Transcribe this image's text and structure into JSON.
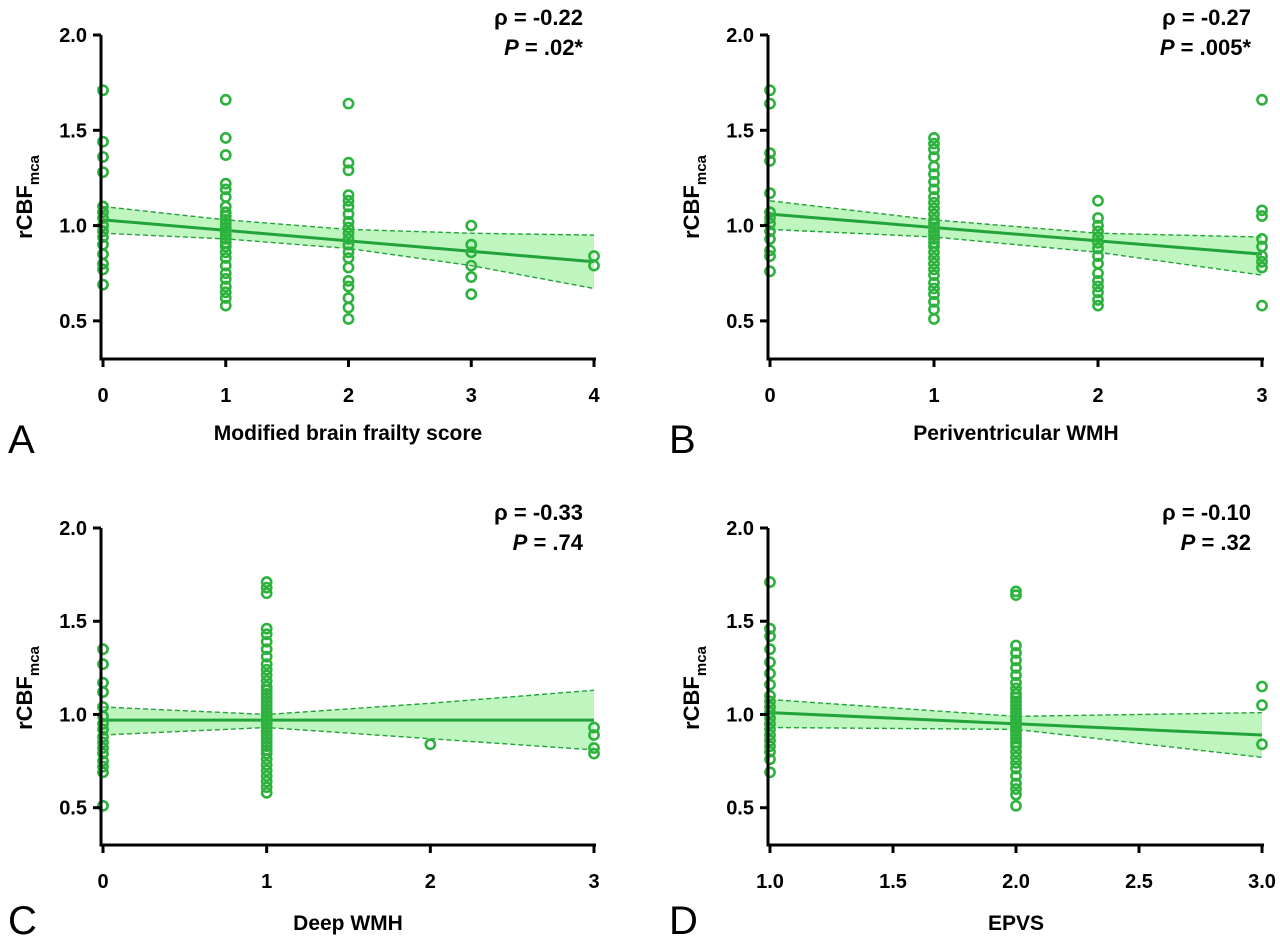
{
  "chart_data": [
    {
      "type": "scatter",
      "panel_label": "A",
      "xlabel": "Modified brain frailty score",
      "ylabel": "rCBF",
      "ylabel_subscript": "mca",
      "ylim": [
        0.3,
        2.0
      ],
      "yticks": [
        0.5,
        1.0,
        1.5,
        2.0
      ],
      "ytick_labels": [
        "0.5",
        "1.0",
        "1.5",
        "2.0"
      ],
      "xlim": [
        0,
        4
      ],
      "xticks": [
        0,
        1,
        2,
        3,
        4
      ],
      "xtick_labels": [
        "0",
        "1",
        "2",
        "3",
        "4"
      ],
      "rho_text": "ρ = -0.22",
      "p_label": "P",
      "p_text": " = .02*",
      "points": [
        {
          "x": 0,
          "y": [
            1.71,
            1.44,
            1.36,
            1.28,
            1.1,
            1.07,
            1.04,
            1.0,
            0.97,
            0.94,
            0.9,
            0.85,
            0.8,
            0.77,
            0.69
          ]
        },
        {
          "x": 1,
          "y": [
            1.66,
            1.46,
            1.37,
            1.22,
            1.19,
            1.15,
            1.1,
            1.07,
            1.05,
            1.03,
            1.01,
            0.99,
            0.97,
            0.95,
            0.93,
            0.91,
            0.89,
            0.86,
            0.83,
            0.79,
            0.75,
            0.72,
            0.68,
            0.65,
            0.62,
            0.58
          ]
        },
        {
          "x": 2,
          "y": [
            1.64,
            1.33,
            1.29,
            1.16,
            1.13,
            1.1,
            1.06,
            1.02,
            0.99,
            0.96,
            0.93,
            0.9,
            0.86,
            0.83,
            0.78,
            0.71,
            0.68,
            0.62,
            0.57,
            0.51
          ]
        },
        {
          "x": 3,
          "y": [
            1.0,
            0.9,
            0.86,
            0.79,
            0.73,
            0.64
          ]
        },
        {
          "x": 4,
          "y": [
            0.84,
            0.79
          ]
        }
      ],
      "fit": {
        "x": [
          0,
          4
        ],
        "y": [
          1.03,
          0.81
        ]
      },
      "ci_upper": {
        "x": [
          0,
          1,
          2,
          3,
          4
        ],
        "y": [
          1.1,
          1.03,
          0.98,
          0.96,
          0.95
        ]
      },
      "ci_lower": {
        "x": [
          0,
          1,
          2,
          3,
          4
        ],
        "y": [
          0.96,
          0.93,
          0.88,
          0.79,
          0.67
        ]
      }
    },
    {
      "type": "scatter",
      "panel_label": "B",
      "xlabel": "Periventricular WMH",
      "ylabel": "rCBF",
      "ylabel_subscript": "mca",
      "ylim": [
        0.3,
        2.0
      ],
      "yticks": [
        0.5,
        1.0,
        1.5,
        2.0
      ],
      "ytick_labels": [
        "0.5",
        "1.0",
        "1.5",
        "2.0"
      ],
      "xlim": [
        0,
        3
      ],
      "xticks": [
        0,
        1,
        2,
        3
      ],
      "xtick_labels": [
        "0",
        "1",
        "2",
        "3"
      ],
      "rho_text": "ρ = -0.27",
      "p_label": "P",
      "p_text": " = .005*",
      "points": [
        {
          "x": 0,
          "y": [
            1.71,
            1.64,
            1.38,
            1.34,
            1.17,
            1.07,
            1.04,
            1.01,
            0.97,
            0.93,
            0.87,
            0.84,
            0.76
          ]
        },
        {
          "x": 1,
          "y": [
            1.46,
            1.43,
            1.4,
            1.36,
            1.31,
            1.27,
            1.23,
            1.19,
            1.15,
            1.12,
            1.09,
            1.06,
            1.03,
            1.01,
            0.99,
            0.97,
            0.95,
            0.93,
            0.91,
            0.89,
            0.86,
            0.83,
            0.8,
            0.77,
            0.74,
            0.7,
            0.67,
            0.64,
            0.6,
            0.56,
            0.51
          ]
        },
        {
          "x": 2,
          "y": [
            1.13,
            1.04,
            1.0,
            0.97,
            0.94,
            0.91,
            0.88,
            0.84,
            0.8,
            0.75,
            0.71,
            0.68,
            0.65,
            0.61,
            0.58
          ]
        },
        {
          "x": 3,
          "y": [
            1.66,
            1.08,
            1.05,
            0.93,
            0.89,
            0.84,
            0.81,
            0.78,
            0.58
          ]
        }
      ],
      "fit": {
        "x": [
          0,
          3
        ],
        "y": [
          1.06,
          0.85
        ]
      },
      "ci_upper": {
        "x": [
          0,
          1,
          2,
          3
        ],
        "y": [
          1.13,
          1.03,
          0.96,
          0.94
        ]
      },
      "ci_lower": {
        "x": [
          0,
          1,
          2,
          3
        ],
        "y": [
          0.98,
          0.94,
          0.86,
          0.74
        ]
      }
    },
    {
      "type": "scatter",
      "panel_label": "C",
      "xlabel": "Deep WMH",
      "ylabel": "rCBF",
      "ylabel_subscript": "mca",
      "ylim": [
        0.3,
        2.0
      ],
      "yticks": [
        0.5,
        1.0,
        1.5,
        2.0
      ],
      "ytick_labels": [
        "0.5",
        "1.0",
        "1.5",
        "2.0"
      ],
      "xlim": [
        0,
        3
      ],
      "xticks": [
        0,
        1,
        2,
        3
      ],
      "xtick_labels": [
        "0",
        "1",
        "2",
        "3"
      ],
      "rho_text": "ρ = -0.33",
      "p_label": "P",
      "p_text": " = .74",
      "points": [
        {
          "x": 0,
          "y": [
            1.35,
            1.27,
            1.17,
            1.12,
            1.04,
            0.99,
            0.95,
            0.92,
            0.88,
            0.85,
            0.82,
            0.79,
            0.75,
            0.72,
            0.69,
            0.51
          ]
        },
        {
          "x": 1,
          "y": [
            1.71,
            1.68,
            1.65,
            1.46,
            1.43,
            1.39,
            1.35,
            1.31,
            1.27,
            1.24,
            1.21,
            1.18,
            1.15,
            1.13,
            1.11,
            1.09,
            1.07,
            1.05,
            1.03,
            1.01,
            0.99,
            0.97,
            0.95,
            0.93,
            0.91,
            0.89,
            0.87,
            0.85,
            0.83,
            0.81,
            0.79,
            0.76,
            0.73,
            0.7,
            0.67,
            0.64,
            0.61,
            0.58
          ]
        },
        {
          "x": 2,
          "y": [
            0.84
          ]
        },
        {
          "x": 3,
          "y": [
            0.93,
            0.89,
            0.82,
            0.79
          ]
        }
      ],
      "fit": {
        "x": [
          0,
          3
        ],
        "y": [
          0.97,
          0.97
        ]
      },
      "ci_upper": {
        "x": [
          0,
          1,
          2,
          3
        ],
        "y": [
          1.04,
          1.0,
          1.06,
          1.13
        ]
      },
      "ci_lower": {
        "x": [
          0,
          1,
          2,
          3
        ],
        "y": [
          0.89,
          0.93,
          0.87,
          0.81
        ]
      }
    },
    {
      "type": "scatter",
      "panel_label": "D",
      "xlabel": "EPVS",
      "ylabel": "rCBF",
      "ylabel_subscript": "mca",
      "ylim": [
        0.3,
        2.0
      ],
      "yticks": [
        0.5,
        1.0,
        1.5,
        2.0
      ],
      "ytick_labels": [
        "0.5",
        "1.0",
        "1.5",
        "2.0"
      ],
      "xlim": [
        1.0,
        3.0
      ],
      "xticks": [
        1.0,
        1.5,
        2.0,
        2.5,
        3.0
      ],
      "xtick_labels": [
        "1.0",
        "1.5",
        "2.0",
        "2.5",
        "3.0"
      ],
      "rho_text": "ρ = -0.10",
      "p_label": "P",
      "p_text": " = .32",
      "points": [
        {
          "x": 1.0,
          "y": [
            1.71,
            1.46,
            1.42,
            1.35,
            1.28,
            1.22,
            1.16,
            1.1,
            1.07,
            1.04,
            1.01,
            0.98,
            0.95,
            0.92,
            0.89,
            0.86,
            0.83,
            0.8,
            0.76,
            0.69
          ]
        },
        {
          "x": 2.0,
          "y": [
            1.66,
            1.64,
            1.37,
            1.33,
            1.29,
            1.25,
            1.21,
            1.17,
            1.14,
            1.11,
            1.09,
            1.07,
            1.05,
            1.03,
            1.01,
            0.99,
            0.97,
            0.95,
            0.93,
            0.91,
            0.89,
            0.87,
            0.85,
            0.83,
            0.8,
            0.77,
            0.74,
            0.71,
            0.67,
            0.63,
            0.6,
            0.57,
            0.51
          ]
        },
        {
          "x": 3.0,
          "y": [
            1.15,
            1.05,
            0.84
          ]
        }
      ],
      "fit": {
        "x": [
          1.0,
          3.0
        ],
        "y": [
          1.01,
          0.89
        ]
      },
      "ci_upper": {
        "x": [
          1.0,
          2.0,
          3.0
        ],
        "y": [
          1.08,
          0.99,
          1.01
        ]
      },
      "ci_lower": {
        "x": [
          1.0,
          2.0,
          3.0
        ],
        "y": [
          0.93,
          0.92,
          0.77
        ]
      }
    }
  ],
  "colors": {
    "marker": "#2db33d",
    "fit_line": "#22a33a",
    "band_fill": "#bff5bf",
    "axis": "#000000"
  }
}
